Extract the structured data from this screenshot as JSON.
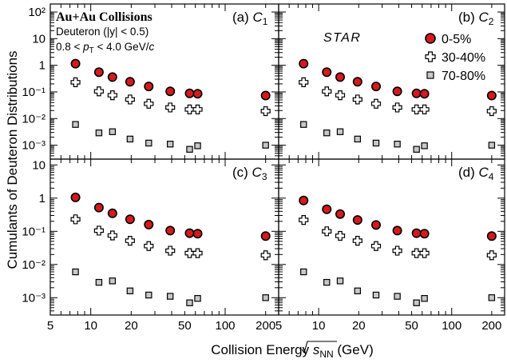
{
  "figure": {
    "ylabel": "Cumulants of Deuteron Distributions",
    "xlabel_main": "Collision Energy ",
    "xlabel_sqrt_s": "s",
    "xlabel_sqrt_sub": "NN",
    "xlabel_unit": " (GeV)",
    "title_line1": "Au+Au Collisions",
    "title_line2": "Deuteron (|y| < 0.5)",
    "title_line3_a": "0.8 < ",
    "title_line3_p": "p",
    "title_line3_sub": "T",
    "title_line3_b": " < 4.0 GeV/",
    "title_line3_c": "c",
    "watermark": "STAR",
    "legend": [
      "0-5%",
      "30-40%",
      "70-80%"
    ]
  },
  "colors": {
    "central_fill": "#d7191c",
    "peripheral_fill": "#c8c8c8",
    "mid_fill": "#ffffff",
    "frame": "#000000",
    "watermark": "#9a9a9a"
  },
  "chart_data": [
    {
      "type": "scatter",
      "panel_label": "(a)",
      "cumulant": "C",
      "cumulant_sub": "1",
      "xscale": "log",
      "yscale": "log",
      "xlim": [
        5,
        250
      ],
      "ylim": [
        0.0003,
        200
      ],
      "x": [
        7.7,
        11.5,
        14.5,
        19.6,
        27,
        39,
        54.4,
        62.4,
        200
      ],
      "series": [
        {
          "name": "0-5%",
          "marker": "circle",
          "values": [
            1.15,
            0.55,
            0.36,
            0.24,
            0.16,
            0.105,
            0.088,
            0.085,
            0.073
          ]
        },
        {
          "name": "30-40%",
          "marker": "cross",
          "values": [
            0.23,
            0.105,
            0.075,
            0.052,
            0.036,
            0.026,
            0.022,
            0.022,
            0.019
          ]
        },
        {
          "name": "70-80%",
          "marker": "square",
          "values": [
            0.006,
            0.0029,
            0.0032,
            0.0017,
            0.0012,
            0.0011,
            0.0007,
            0.00095,
            0.001
          ]
        }
      ],
      "xticks": [],
      "yticks": [
        "10^{-3}",
        "10^{-2}",
        "10^{-1}",
        "1",
        "10",
        "10^{2}"
      ]
    },
    {
      "type": "scatter",
      "panel_label": "(b)",
      "cumulant": "C",
      "cumulant_sub": "2",
      "xscale": "log",
      "yscale": "log",
      "xlim": [
        5,
        250
      ],
      "ylim": [
        0.0003,
        200
      ],
      "x": [
        7.7,
        11.5,
        14.5,
        19.6,
        27,
        39,
        54.4,
        62.4,
        200
      ],
      "series": [
        {
          "name": "0-5%",
          "marker": "circle",
          "values": [
            1.15,
            0.55,
            0.36,
            0.24,
            0.16,
            0.105,
            0.088,
            0.085,
            0.073
          ]
        },
        {
          "name": "30-40%",
          "marker": "cross",
          "values": [
            0.23,
            0.105,
            0.075,
            0.052,
            0.036,
            0.026,
            0.022,
            0.022,
            0.019
          ]
        },
        {
          "name": "70-80%",
          "marker": "square",
          "values": [
            0.006,
            0.0029,
            0.0032,
            0.0017,
            0.0012,
            0.0011,
            0.0007,
            0.00095,
            0.001
          ]
        }
      ],
      "xticks": [],
      "yticks": []
    },
    {
      "type": "scatter",
      "panel_label": "(c)",
      "cumulant": "C",
      "cumulant_sub": "3",
      "xscale": "log",
      "yscale": "log",
      "xlim": [
        5,
        250
      ],
      "ylim": [
        0.0003,
        15
      ],
      "x": [
        7.7,
        11.5,
        14.5,
        19.6,
        27,
        39,
        54.4,
        62.4,
        200
      ],
      "series": [
        {
          "name": "0-5%",
          "marker": "circle",
          "values": [
            1.05,
            0.52,
            0.35,
            0.23,
            0.16,
            0.105,
            0.088,
            0.085,
            0.072
          ]
        },
        {
          "name": "30-40%",
          "marker": "cross",
          "values": [
            0.23,
            0.105,
            0.075,
            0.052,
            0.036,
            0.026,
            0.022,
            0.022,
            0.019
          ]
        },
        {
          "name": "70-80%",
          "marker": "square",
          "values": [
            0.006,
            0.0029,
            0.0032,
            0.0016,
            0.0012,
            0.0011,
            0.0007,
            0.00095,
            0.001
          ]
        }
      ],
      "xticks": [
        "5",
        "10",
        "20",
        "50",
        "100",
        "200"
      ],
      "yticks": [
        "10^{-3}",
        "10^{-2}",
        "10^{-1}",
        "1",
        "10"
      ]
    },
    {
      "type": "scatter",
      "panel_label": "(d)",
      "cumulant": "C",
      "cumulant_sub": "4",
      "xscale": "log",
      "yscale": "log",
      "xlim": [
        5,
        250
      ],
      "ylim": [
        0.0003,
        15
      ],
      "x": [
        7.7,
        11.5,
        14.5,
        19.6,
        27,
        39,
        54.4,
        62.4,
        200
      ],
      "series": [
        {
          "name": "0-5%",
          "marker": "circle",
          "values": [
            0.85,
            0.46,
            0.33,
            0.22,
            0.155,
            0.105,
            0.088,
            0.085,
            0.072
          ]
        },
        {
          "name": "30-40%",
          "marker": "cross",
          "values": [
            0.22,
            0.1,
            0.073,
            0.052,
            0.036,
            0.026,
            0.022,
            0.022,
            0.019
          ]
        },
        {
          "name": "70-80%",
          "marker": "square",
          "values": [
            0.006,
            0.0029,
            0.0032,
            0.0016,
            0.0012,
            0.0011,
            0.0007,
            0.00095,
            0.001
          ]
        }
      ],
      "xticks": [
        "5",
        "10",
        "20",
        "50",
        "100",
        "200"
      ],
      "yticks": []
    }
  ]
}
